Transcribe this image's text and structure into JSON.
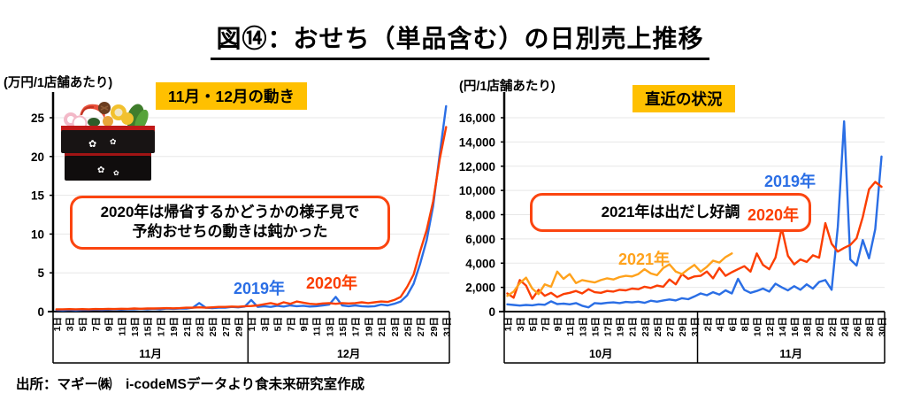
{
  "page_title": "図⑭：おせち（単品含む）の日別売上推移",
  "source_note": "出所：マギー㈱　i-codeMSデータより食未来研究室作成",
  "colors": {
    "series2019": "#2A6EE5",
    "series2020": "#FB3E00",
    "series2021": "#FFA21C",
    "badge_bg": "#FFC000",
    "callout_border": "#FB4510"
  },
  "left": {
    "unit": "(万円/1店舗あたり)",
    "badge": "11月・12月の動き",
    "callout": {
      "line1": "2020年は帰省するかどうかの様子見で",
      "line2": "予約おせちの動きは鈍かった"
    },
    "legend_2019": "2019年",
    "legend_2020": "2020年"
  },
  "right": {
    "unit": "(円/1店舗あたり)",
    "badge": "直近の状況",
    "callout": "2021年は出だし好調",
    "legend_2019": "2019年",
    "legend_2020": "2020年",
    "legend_2021": "2021年"
  },
  "chart_data": [
    {
      "type": "line",
      "title": "11月・12月の動き",
      "ylabel": "万円/1店舗あたり",
      "ylim": [
        0,
        25
      ],
      "ytick_step": 5,
      "ytick_format": "plain",
      "grid": true,
      "legend_position": "inline-labels",
      "months": [
        {
          "label": "11月",
          "days": 30,
          "tick_start": 1,
          "tick_step": 2,
          "day_suffix": "日"
        },
        {
          "label": "12月",
          "days": 31,
          "tick_start": 1,
          "tick_step": 2,
          "day_suffix": "日"
        }
      ],
      "series": [
        {
          "name": "2019年",
          "color_key": "series2019",
          "values": [
            0.2,
            0.15,
            0.2,
            0.15,
            0.2,
            0.2,
            0.25,
            0.2,
            0.25,
            0.3,
            0.25,
            0.3,
            0.3,
            0.35,
            0.3,
            0.35,
            0.3,
            0.4,
            0.35,
            0.4,
            0.4,
            0.5,
            1.1,
            0.5,
            0.45,
            0.5,
            0.5,
            0.6,
            0.55,
            0.65,
            1.5,
            0.6,
            0.7,
            0.6,
            0.75,
            0.65,
            0.8,
            0.7,
            0.75,
            0.65,
            0.7,
            0.8,
            0.9,
            1.9,
            0.8,
            0.7,
            0.8,
            0.7,
            0.65,
            0.7,
            0.9,
            0.8,
            1.0,
            1.3,
            2.1,
            3.6,
            6.2,
            9.2,
            13.6,
            20.2,
            26.5
          ]
        },
        {
          "name": "2020年",
          "color_key": "series2020",
          "values": [
            0.3,
            0.3,
            0.32,
            0.3,
            0.32,
            0.3,
            0.33,
            0.32,
            0.35,
            0.33,
            0.36,
            0.35,
            0.4,
            0.36,
            0.4,
            0.4,
            0.42,
            0.45,
            0.42,
            0.45,
            0.5,
            0.5,
            0.55,
            0.5,
            0.55,
            0.6,
            0.6,
            0.65,
            0.62,
            0.7,
            0.72,
            0.8,
            0.95,
            1.1,
            0.9,
            1.2,
            1.0,
            1.3,
            1.15,
            1.0,
            0.95,
            1.05,
            1.1,
            1.0,
            1.1,
            1.05,
            1.1,
            1.2,
            1.1,
            1.2,
            1.3,
            1.25,
            1.5,
            1.9,
            3.2,
            4.8,
            7.8,
            10.5,
            14.2,
            19.6,
            23.8
          ]
        }
      ]
    },
    {
      "type": "line",
      "title": "直近の状況",
      "ylabel": "円/1店舗あたり",
      "ylim": [
        0,
        16000
      ],
      "ytick_step": 2000,
      "ytick_format": "comma",
      "grid": true,
      "legend_position": "inline-labels",
      "months": [
        {
          "label": "10月",
          "days": 31,
          "tick_start": 1,
          "tick_step": 2,
          "day_suffix": "日"
        },
        {
          "label": "11月",
          "days": 30,
          "tick_start": 2,
          "tick_step": 2,
          "day_suffix": "日"
        }
      ],
      "series": [
        {
          "name": "2019年",
          "color_key": "series2019",
          "values": [
            600,
            550,
            500,
            550,
            520,
            600,
            560,
            850,
            620,
            660,
            600,
            700,
            480,
            350,
            700,
            660,
            720,
            760,
            700,
            800,
            760,
            820,
            720,
            900,
            820,
            920,
            1000,
            920,
            1100,
            1020,
            1250,
            1500,
            1350,
            1600,
            1400,
            1750,
            1500,
            2700,
            1800,
            1550,
            1700,
            1900,
            1650,
            2300,
            2000,
            1750,
            2100,
            1800,
            2250,
            1900,
            2450,
            2600,
            1800,
            7000,
            15700,
            4300,
            3800,
            5900,
            4400,
            6800,
            12800
          ]
        },
        {
          "name": "2020年",
          "color_key": "series2020",
          "values": [
            1500,
            1150,
            2600,
            2150,
            1050,
            1800,
            1300,
            1550,
            1200,
            1450,
            1550,
            1700,
            1500,
            1850,
            1600,
            1550,
            1700,
            1650,
            1800,
            1750,
            1900,
            1850,
            2050,
            1950,
            2150,
            2050,
            2650,
            2250,
            3100,
            2700,
            2900,
            2950,
            3300,
            2750,
            3600,
            2950,
            3250,
            3500,
            3750,
            3300,
            4800,
            3850,
            3500,
            4450,
            6900,
            4600,
            3900,
            4300,
            4100,
            4650,
            4450,
            7300,
            5600,
            4950,
            5250,
            5500,
            6050,
            7800,
            10100,
            10700,
            10300
          ]
        },
        {
          "name": "2021年",
          "color_key": "series2021",
          "values": [
            1300,
            1650,
            2350,
            2800,
            1900,
            1450,
            2250,
            2050,
            3300,
            2700,
            3100,
            2350,
            2600,
            2500,
            2400,
            2600,
            2750,
            2650,
            2850,
            2950,
            2900,
            3100,
            3500,
            3150,
            3000,
            3600,
            3900,
            3300,
            3100,
            3500,
            3850,
            3300,
            3700,
            4200,
            4050,
            4500,
            4800
          ]
        }
      ]
    }
  ]
}
